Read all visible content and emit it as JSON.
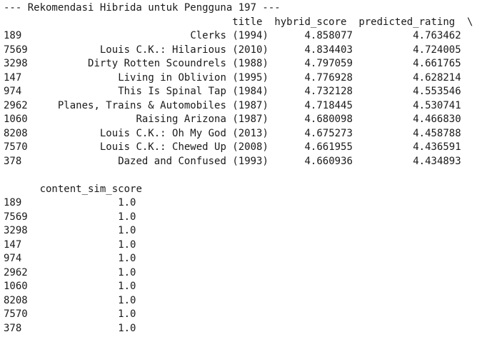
{
  "header": "--- Rekomendasi Hibrida untuk Pengguna 197 ---",
  "table1": {
    "columns": [
      "title",
      "hybrid_score",
      "predicted_rating"
    ],
    "continuation": "\\",
    "rows": [
      {
        "index": "189",
        "title": "Clerks (1994)",
        "hybrid_score": "4.858077",
        "predicted_rating": "4.763462"
      },
      {
        "index": "7569",
        "title": "Louis C.K.: Hilarious (2010)",
        "hybrid_score": "4.834403",
        "predicted_rating": "4.724005"
      },
      {
        "index": "3298",
        "title": "Dirty Rotten Scoundrels (1988)",
        "hybrid_score": "4.797059",
        "predicted_rating": "4.661765"
      },
      {
        "index": "147",
        "title": "Living in Oblivion (1995)",
        "hybrid_score": "4.776928",
        "predicted_rating": "4.628214"
      },
      {
        "index": "974",
        "title": "This Is Spinal Tap (1984)",
        "hybrid_score": "4.732128",
        "predicted_rating": "4.553546"
      },
      {
        "index": "2962",
        "title": "Planes, Trains & Automobiles (1987)",
        "hybrid_score": "4.718445",
        "predicted_rating": "4.530741"
      },
      {
        "index": "1060",
        "title": "Raising Arizona (1987)",
        "hybrid_score": "4.680098",
        "predicted_rating": "4.466830"
      },
      {
        "index": "8208",
        "title": "Louis C.K.: Oh My God (2013)",
        "hybrid_score": "4.675273",
        "predicted_rating": "4.458788"
      },
      {
        "index": "7570",
        "title": "Louis C.K.: Chewed Up (2008)",
        "hybrid_score": "4.661955",
        "predicted_rating": "4.436591"
      },
      {
        "index": "378",
        "title": "Dazed and Confused (1993)",
        "hybrid_score": "4.660936",
        "predicted_rating": "4.434893"
      }
    ]
  },
  "table2": {
    "columns": [
      "content_sim_score"
    ],
    "rows": [
      {
        "index": "189",
        "content_sim_score": "1.0"
      },
      {
        "index": "7569",
        "content_sim_score": "1.0"
      },
      {
        "index": "3298",
        "content_sim_score": "1.0"
      },
      {
        "index": "147",
        "content_sim_score": "1.0"
      },
      {
        "index": "974",
        "content_sim_score": "1.0"
      },
      {
        "index": "2962",
        "content_sim_score": "1.0"
      },
      {
        "index": "1060",
        "content_sim_score": "1.0"
      },
      {
        "index": "8208",
        "content_sim_score": "1.0"
      },
      {
        "index": "7570",
        "content_sim_score": "1.0"
      },
      {
        "index": "378",
        "content_sim_score": "1.0"
      }
    ]
  }
}
